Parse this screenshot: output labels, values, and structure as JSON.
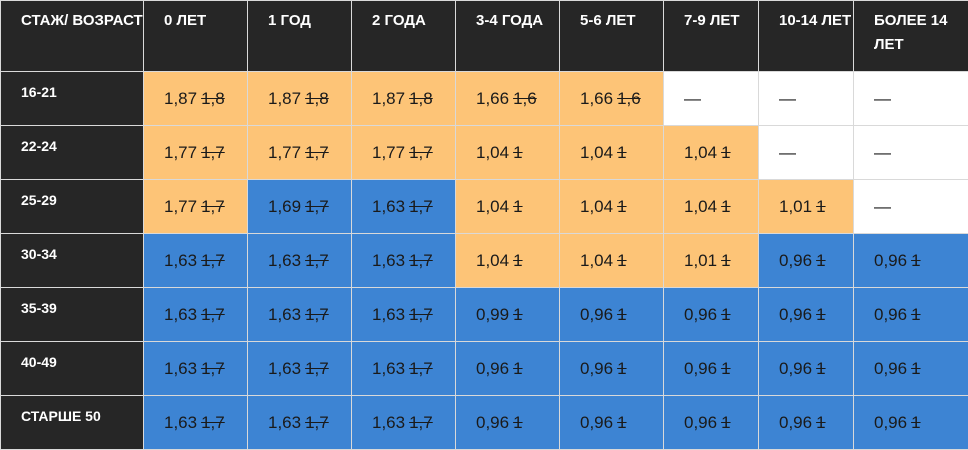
{
  "header": {
    "corner": "СТАЖ/ ВОЗРАСТ",
    "columns": [
      "0 ЛЕТ",
      "1 ГОД",
      "2 ГОДА",
      "3-4 ГОДА",
      "5-6 ЛЕТ",
      "7-9 ЛЕТ",
      "10-14 ЛЕТ",
      "БОЛЕЕ 14 ЛЕТ"
    ]
  },
  "colors": {
    "orange": "#fdc477",
    "blue": "#3d84d3",
    "dark": "#262626",
    "white": "#ffffff"
  },
  "rows": [
    {
      "label": "16-21",
      "cells": [
        {
          "new": "1,87",
          "old": "1,8",
          "color": "orange"
        },
        {
          "new": "1,87",
          "old": "1,8",
          "color": "orange"
        },
        {
          "new": "1,87",
          "old": "1,8",
          "color": "orange"
        },
        {
          "new": "1,66",
          "old": "1,6",
          "color": "orange"
        },
        {
          "new": "1,66",
          "old": "1,6",
          "color": "orange"
        },
        {
          "new": "—",
          "color": "white"
        },
        {
          "new": "—",
          "color": "white"
        },
        {
          "new": "—",
          "color": "white"
        }
      ]
    },
    {
      "label": "22-24",
      "cells": [
        {
          "new": "1,77",
          "old": "1,7",
          "color": "orange"
        },
        {
          "new": "1,77",
          "old": "1,7",
          "color": "orange"
        },
        {
          "new": "1,77",
          "old": "1,7",
          "color": "orange"
        },
        {
          "new": "1,04",
          "old": "1",
          "color": "orange"
        },
        {
          "new": "1,04",
          "old": "1",
          "color": "orange"
        },
        {
          "new": "1,04",
          "old": "1",
          "color": "orange"
        },
        {
          "new": "—",
          "color": "white"
        },
        {
          "new": "—",
          "color": "white"
        }
      ]
    },
    {
      "label": "25-29",
      "cells": [
        {
          "new": "1,77",
          "old": "1,7",
          "color": "orange"
        },
        {
          "new": "1,69",
          "old": "1,7",
          "color": "blue"
        },
        {
          "new": "1,63",
          "old": "1,7",
          "color": "blue"
        },
        {
          "new": "1,04",
          "old": "1",
          "color": "orange"
        },
        {
          "new": "1,04",
          "old": "1",
          "color": "orange"
        },
        {
          "new": "1,04",
          "old": "1",
          "color": "orange"
        },
        {
          "new": "1,01",
          "old": "1",
          "color": "orange"
        },
        {
          "new": "—",
          "color": "white"
        }
      ]
    },
    {
      "label": "30-34",
      "cells": [
        {
          "new": "1,63",
          "old": "1,7",
          "color": "blue"
        },
        {
          "new": "1,63",
          "old": "1,7",
          "color": "blue"
        },
        {
          "new": "1,63",
          "old": "1,7",
          "color": "blue"
        },
        {
          "new": "1,04",
          "old": "1",
          "color": "orange"
        },
        {
          "new": "1,04",
          "old": "1",
          "color": "orange"
        },
        {
          "new": "1,01",
          "old": "1",
          "color": "orange"
        },
        {
          "new": "0,96",
          "old": "1",
          "color": "blue"
        },
        {
          "new": "0,96",
          "old": "1",
          "color": "blue"
        }
      ]
    },
    {
      "label": "35-39",
      "cells": [
        {
          "new": "1,63",
          "old": "1,7",
          "color": "blue"
        },
        {
          "new": "1,63",
          "old": "1,7",
          "color": "blue"
        },
        {
          "new": "1,63",
          "old": "1,7",
          "color": "blue"
        },
        {
          "new": "0,99",
          "old": "1",
          "color": "blue"
        },
        {
          "new": "0,96",
          "old": "1",
          "color": "blue"
        },
        {
          "new": "0,96",
          "old": "1",
          "color": "blue"
        },
        {
          "new": "0,96",
          "old": "1",
          "color": "blue"
        },
        {
          "new": "0,96",
          "old": "1",
          "color": "blue"
        }
      ]
    },
    {
      "label": "40-49",
      "cells": [
        {
          "new": "1,63",
          "old": "1,7",
          "color": "blue"
        },
        {
          "new": "1,63",
          "old": "1,7",
          "color": "blue"
        },
        {
          "new": "1,63",
          "old": "1,7",
          "color": "blue"
        },
        {
          "new": "0,96",
          "old": "1",
          "color": "blue"
        },
        {
          "new": "0,96",
          "old": "1",
          "color": "blue"
        },
        {
          "new": "0,96",
          "old": "1",
          "color": "blue"
        },
        {
          "new": "0,96",
          "old": "1",
          "color": "blue"
        },
        {
          "new": "0,96",
          "old": "1",
          "color": "blue"
        }
      ]
    },
    {
      "label": "СТАРШЕ 50",
      "cells": [
        {
          "new": "1,63",
          "old": "1,7",
          "color": "blue"
        },
        {
          "new": "1,63",
          "old": "1,7",
          "color": "blue"
        },
        {
          "new": "1,63",
          "old": "1,7",
          "color": "blue"
        },
        {
          "new": "0,96",
          "old": "1",
          "color": "blue"
        },
        {
          "new": "0,96",
          "old": "1",
          "color": "blue"
        },
        {
          "new": "0,96",
          "old": "1",
          "color": "blue"
        },
        {
          "new": "0,96",
          "old": "1",
          "color": "blue"
        },
        {
          "new": "0,96",
          "old": "1",
          "color": "blue"
        }
      ]
    }
  ]
}
